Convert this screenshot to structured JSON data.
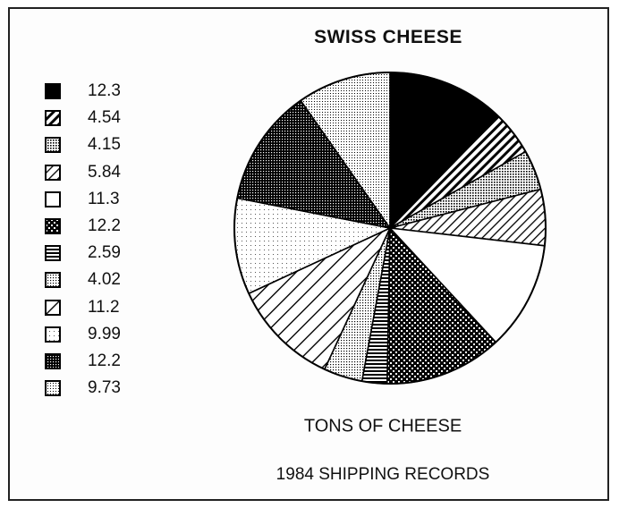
{
  "chart_data": {
    "type": "pie",
    "title": "SWISS CHEESE",
    "captions": [
      "TONS OF CHEESE",
      "1984 SHIPPING RECORDS"
    ],
    "legend_position": "left",
    "start": "top, clockwise",
    "slices": [
      {
        "label": "12.3",
        "value": 12.3,
        "pattern": "solid-black"
      },
      {
        "label": "4.54",
        "value": 4.54,
        "pattern": "heavy-diagonal-hatch"
      },
      {
        "label": "4.15",
        "value": 4.15,
        "pattern": "medium-dots"
      },
      {
        "label": "5.84",
        "value": 5.84,
        "pattern": "light-diagonal-hatch"
      },
      {
        "label": "11.3",
        "value": 11.3,
        "pattern": "white"
      },
      {
        "label": "12.2",
        "value": 12.2,
        "pattern": "black-with-white-dots"
      },
      {
        "label": "2.59",
        "value": 2.59,
        "pattern": "horizontal-lines"
      },
      {
        "label": "4.02",
        "value": 4.02,
        "pattern": "light-dots"
      },
      {
        "label": "11.2",
        "value": 11.2,
        "pattern": "wide-diagonal-lines"
      },
      {
        "label": "9.99",
        "value": 9.99,
        "pattern": "very-light-dots"
      },
      {
        "label": "12.2",
        "value": 12.2,
        "pattern": "dark-dots"
      },
      {
        "label": "9.73",
        "value": 9.73,
        "pattern": "fine-dots"
      }
    ]
  }
}
